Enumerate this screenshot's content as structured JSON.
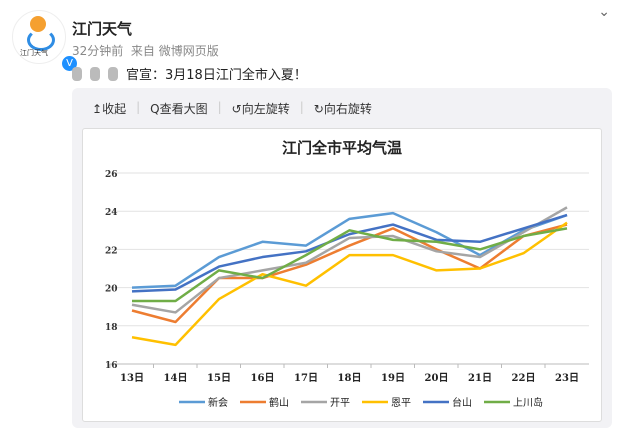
{
  "post": {
    "author": "江门天气",
    "avatar_text": "江门天气",
    "time": "32分钟前",
    "source": "来自 微博网页版",
    "text": "官宣：3月18日江门全市入夏！",
    "verified_badge": "V"
  },
  "toolbar": {
    "collapse": "收起",
    "view_large": "查看大图",
    "rotate_left": "向左旋转",
    "rotate_right": "向右旋转"
  },
  "chart_data": {
    "type": "line",
    "title": "江门全市平均气温",
    "categories": [
      "13日",
      "14日",
      "15日",
      "16日",
      "17日",
      "18日",
      "19日",
      "20日",
      "21日",
      "22日",
      "23日"
    ],
    "ylim": [
      16,
      26
    ],
    "yticks": [
      16,
      18,
      20,
      22,
      24,
      26
    ],
    "grid": true,
    "legend": "bottom",
    "series": [
      {
        "name": "新会",
        "color": "#5b9bd5",
        "values": [
          20.0,
          20.1,
          21.6,
          22.4,
          22.2,
          23.6,
          23.9,
          22.9,
          21.7,
          23.0,
          23.8
        ]
      },
      {
        "name": "鹤山",
        "color": "#ed7d31",
        "values": [
          18.8,
          18.2,
          20.5,
          20.5,
          21.2,
          22.2,
          23.1,
          22.0,
          21.0,
          22.7,
          23.3
        ]
      },
      {
        "name": "开平",
        "color": "#a5a5a5",
        "values": [
          19.1,
          18.7,
          20.5,
          20.9,
          21.3,
          22.6,
          22.7,
          21.9,
          21.6,
          22.9,
          24.2
        ]
      },
      {
        "name": "恩平",
        "color": "#ffc000",
        "values": [
          17.4,
          17.0,
          19.4,
          20.7,
          20.1,
          21.7,
          21.7,
          20.9,
          21.0,
          21.8,
          23.4
        ]
      },
      {
        "name": "台山",
        "color": "#4472c4",
        "values": [
          19.8,
          19.9,
          21.1,
          21.6,
          21.9,
          22.8,
          23.3,
          22.5,
          22.4,
          23.1,
          23.8
        ]
      },
      {
        "name": "上川岛",
        "color": "#70ad47",
        "values": [
          19.3,
          19.3,
          20.9,
          20.5,
          21.7,
          23.0,
          22.5,
          22.4,
          22.0,
          22.7,
          23.1
        ]
      }
    ]
  }
}
